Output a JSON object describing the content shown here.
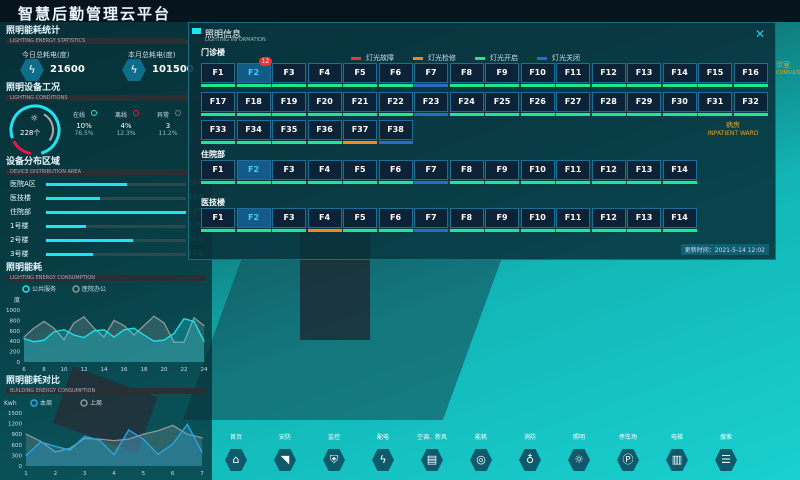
{
  "header": {
    "title": "智慧后勤管理云平台"
  },
  "energy_stats": {
    "title": "照明能耗统计",
    "subtitle": "LIGHTING ENERGY STATISTICS",
    "today_label": "今日总耗电(度)",
    "today_value": "21600",
    "month_label": "本月总耗电(度)",
    "month_value": "101500"
  },
  "device_status": {
    "title": "照明设备工况",
    "subtitle": "LIGHTING CONDITIONS",
    "total": "228个",
    "items": [
      {
        "label": "在线",
        "value": "10%",
        "pct": "76.5%",
        "color": "#1ee4f0"
      },
      {
        "label": "离线",
        "value": "4%",
        "pct": "12.3%",
        "color": "#e8174a"
      },
      {
        "label": "异常",
        "value": "3",
        "pct": "11.2%",
        "color": "#777"
      }
    ]
  },
  "distribution": {
    "title": "设备分布区域",
    "subtitle": "DEVICE DISTRIBUTION AREA",
    "items": [
      {
        "label": "医院A区",
        "value": 24
      },
      {
        "label": "医技楼",
        "value": 16
      },
      {
        "label": "住院部",
        "value": 42
      },
      {
        "label": "1号楼",
        "value": 12
      },
      {
        "label": "2号楼",
        "value": 26
      },
      {
        "label": "3号楼",
        "value": 14
      }
    ]
  },
  "chart_data": [
    {
      "type": "area",
      "title": "照明能耗",
      "subtitle": "LIGHTING ENERGY CONSUMPTION",
      "ylabel": "度",
      "ylim": [
        0,
        1000
      ],
      "yticks": [
        0,
        200,
        400,
        600,
        800,
        1000
      ],
      "xlim": [
        6,
        24
      ],
      "xticks": [
        6,
        8,
        10,
        12,
        14,
        16,
        18,
        20,
        22,
        24
      ],
      "legend": "top-left",
      "x": [
        6,
        7,
        8,
        9,
        10,
        11,
        12,
        13,
        14,
        15,
        16,
        17,
        18,
        19,
        20,
        21,
        22,
        23,
        24
      ],
      "series": [
        {
          "name": "公共服务",
          "color": "#1ee4f0",
          "values": [
            450,
            390,
            420,
            580,
            620,
            520,
            470,
            600,
            620,
            480,
            620,
            650,
            520,
            400,
            420,
            550,
            830,
            780,
            400
          ]
        },
        {
          "name": "医院办公",
          "color": "#8a9a9a",
          "values": [
            480,
            650,
            780,
            650,
            430,
            750,
            870,
            650,
            480,
            800,
            700,
            520,
            700,
            880,
            750,
            380,
            380,
            850,
            700
          ]
        }
      ]
    },
    {
      "type": "area",
      "title": "照明能耗对比",
      "subtitle": "BUILDING ENERGY CONSUMPTION",
      "ylabel": "Kwh",
      "ylim": [
        0,
        1500
      ],
      "yticks": [
        0,
        300,
        600,
        900,
        1200,
        1500
      ],
      "xlim": [
        1,
        7
      ],
      "xticks": [
        1,
        2,
        3,
        4,
        5,
        6,
        7
      ],
      "legend": "top-left",
      "x": [
        1,
        1.5,
        2,
        2.5,
        3,
        3.5,
        4,
        4.5,
        5,
        5.5,
        6,
        6.5,
        7
      ],
      "series": [
        {
          "name": "本周",
          "color": "#2aa8e8",
          "values": [
            300,
            680,
            560,
            450,
            840,
            730,
            320,
            1020,
            760,
            330,
            620,
            1180,
            400
          ]
        },
        {
          "name": "上周",
          "color": "#8a9a9a",
          "values": [
            900,
            700,
            400,
            500,
            780,
            760,
            720,
            760,
            900,
            1000,
            1150,
            900,
            800
          ]
        }
      ]
    }
  ],
  "modal": {
    "title": "照明信息",
    "subtitle": "LIGHTING INFORMATION",
    "close": "✕",
    "legend": [
      {
        "label": "灯光故障",
        "color": "#e8334a"
      },
      {
        "label": "灯光检修",
        "color": "#f08a1c"
      },
      {
        "label": "灯光开启",
        "color": "#1ee88a"
      },
      {
        "label": "灯光关闭",
        "color": "#2a6cc0"
      }
    ],
    "buildings": [
      {
        "name": "门诊楼",
        "count": 38,
        "off": [
          7,
          23,
          38
        ],
        "repair": [
          37
        ],
        "selected": 2,
        "badge": {
          "floor": 2,
          "text": "12"
        }
      },
      {
        "name": "住院部",
        "count": 14,
        "off": [
          7
        ],
        "repair": [],
        "selected": 2
      },
      {
        "name": "医技楼",
        "count": 14,
        "off": [
          7
        ],
        "repair": [
          4
        ],
        "selected": 2
      }
    ],
    "updated": "更新时间：2021-5-14  12:02"
  },
  "scene": {
    "labels": [
      {
        "cn": "诊室",
        "en": "CONSULTATION ROOM"
      },
      {
        "cn": "病房",
        "en": "INPATIENT WARD"
      }
    ]
  },
  "toolbar": [
    {
      "label": "首页",
      "icon": "⌂",
      "name": "home"
    },
    {
      "label": "安防",
      "icon": "◥",
      "name": "camera"
    },
    {
      "label": "监控",
      "icon": "⛨",
      "name": "shield"
    },
    {
      "label": "配电",
      "icon": "ϟ",
      "name": "lightning"
    },
    {
      "label": "空调、新风",
      "icon": "▤",
      "name": "air-conditioner"
    },
    {
      "label": "能耗",
      "icon": "◎",
      "name": "energy"
    },
    {
      "label": "消防",
      "icon": "♁",
      "name": "fire-hydrant"
    },
    {
      "label": "照明",
      "icon": "☼",
      "name": "bulb"
    },
    {
      "label": "停车场",
      "icon": "Ⓟ",
      "name": "parking"
    },
    {
      "label": "电梯",
      "icon": "▥",
      "name": "elevator"
    },
    {
      "label": "搜索",
      "icon": "☰",
      "name": "search"
    }
  ]
}
